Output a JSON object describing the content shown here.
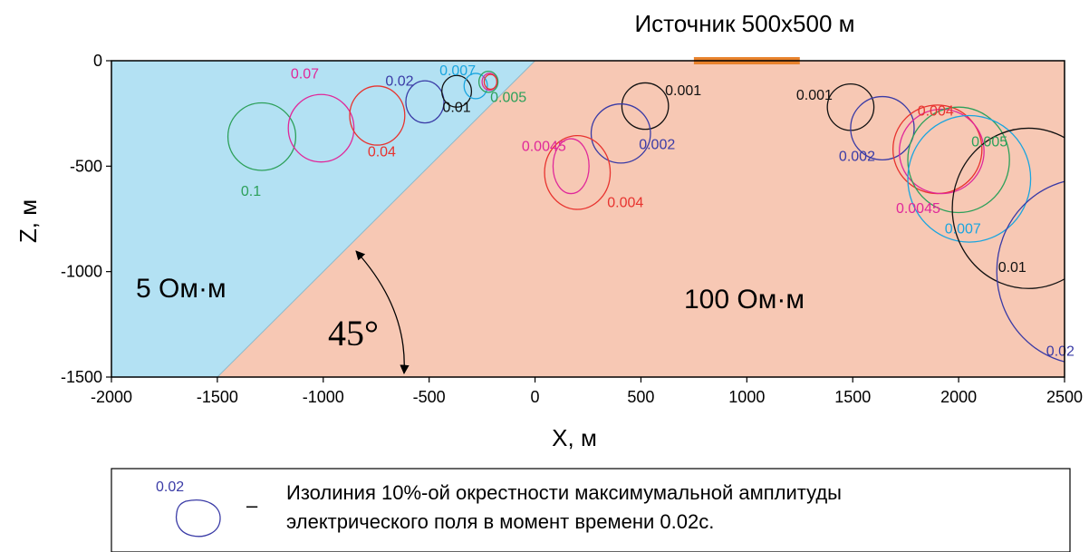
{
  "source": {
    "label": "Источник 500х500 м",
    "x_range": [
      750,
      1250
    ],
    "color": "#e8822c"
  },
  "axes": {
    "xlabel": "X, м",
    "ylabel": "Z, м",
    "xlim": [
      -2000,
      2500
    ],
    "zlim": [
      -1500,
      0
    ],
    "x_ticks": [
      {
        "v": -2000,
        "t": "-2000"
      },
      {
        "v": -1500,
        "t": "-1500"
      },
      {
        "v": -1000,
        "t": "-1000"
      },
      {
        "v": -500,
        "t": "-500"
      },
      {
        "v": 0,
        "t": "0"
      },
      {
        "v": 500,
        "t": "500"
      },
      {
        "v": 1000,
        "t": "1000"
      },
      {
        "v": 1500,
        "t": "1500"
      },
      {
        "v": 2000,
        "t": "2000"
      },
      {
        "v": 2500,
        "t": "2500"
      }
    ],
    "z_ticks": [
      {
        "v": 0,
        "t": "0"
      },
      {
        "v": -500,
        "t": "-500"
      },
      {
        "v": -1000,
        "t": "-1000"
      },
      {
        "v": -1500,
        "t": "-1500"
      }
    ]
  },
  "media": {
    "left": {
      "label": "5 Ом·м",
      "color": "#b3e1f3"
    },
    "right": {
      "label": "100 Ом·м",
      "color": "#f7c8b4"
    },
    "boundary": {
      "top_x": 0,
      "bottom_x": -1500
    },
    "angle_label": "45°"
  },
  "contours": [
    {
      "label": "0.1",
      "color": "#2da05a",
      "cx": -1290,
      "cz": -360,
      "rx": 160,
      "rz": 160
    },
    {
      "label": "0.07",
      "color": "#e0289a",
      "cx": -1010,
      "cz": -320,
      "rx": 155,
      "rz": 160
    },
    {
      "label": "0.04",
      "color": "#e8332f",
      "cx": -745,
      "cz": -260,
      "rx": 130,
      "rz": 140
    },
    {
      "label": "0.02",
      "color": "#3a3ba6",
      "cx": -520,
      "cz": -195,
      "rx": 90,
      "rz": 100
    },
    {
      "label": "0.01",
      "color": "#111111",
      "cx": -370,
      "cz": -145,
      "rx": 70,
      "rz": 75
    },
    {
      "label": "0.007",
      "color": "#1aa5df",
      "cx": -280,
      "cz": -120,
      "rx": 55,
      "rz": 60
    },
    {
      "label": "0.005",
      "color": "#2da05a",
      "cx": -220,
      "cz": -100,
      "rx": 45,
      "rz": 50
    },
    {
      "label": "",
      "color": "#e0289a",
      "cx": -215,
      "cz": -100,
      "rx": 35,
      "rz": 40
    },
    {
      "label": "",
      "color": "#e8332f",
      "cx": -210,
      "cz": -100,
      "rx": 30,
      "rz": 35
    },
    {
      "label": "0.001",
      "color": "#111111",
      "cx": 520,
      "cz": -215,
      "rx": 110,
      "rz": 110
    },
    {
      "label": "0.002",
      "color": "#3a3ba6",
      "cx": 405,
      "cz": -345,
      "rx": 140,
      "rz": 140
    },
    {
      "label": "0.0045",
      "color": "#e0289a",
      "cx": 170,
      "cz": -500,
      "rx": 85,
      "rz": 130
    },
    {
      "label": "0.004",
      "color": "#e8332f",
      "cx": 200,
      "cz": -530,
      "rx": 155,
      "rz": 175
    },
    {
      "label": "0.001",
      "color": "#111111",
      "cx": 1490,
      "cz": -220,
      "rx": 110,
      "rz": 110
    },
    {
      "label": "0.002",
      "color": "#3a3ba6",
      "cx": 1640,
      "cz": -320,
      "rx": 150,
      "rz": 150
    },
    {
      "label": "0.004",
      "color": "#e8332f",
      "cx": 1900,
      "cz": -420,
      "rx": 210,
      "rz": 210
    },
    {
      "label": "0.0045",
      "color": "#e0289a",
      "cx": 1920,
      "cz": -430,
      "rx": 200,
      "rz": 200
    },
    {
      "label": "0.005",
      "color": "#2da05a",
      "cx": 2000,
      "cz": -470,
      "rx": 240,
      "rz": 250
    },
    {
      "label": "0.007",
      "color": "#1aa5df",
      "cx": 2050,
      "cz": -560,
      "rx": 290,
      "rz": 300
    },
    {
      "label": "0.01",
      "color": "#111111",
      "cx": 2330,
      "cz": -700,
      "rx": 360,
      "rz": 380
    },
    {
      "label": "0.02",
      "color": "#3a3ba6",
      "cx": 2600,
      "cz": -1000,
      "rx": 420,
      "rz": 440
    }
  ],
  "legend": {
    "sample_label": "0.02",
    "sample_color": "#3a3ba6",
    "dash": "–",
    "line1": "Изолиния 10%-ой окрестности максимумальной амплитуды",
    "line2": "электрического поля в момент времени 0.02с."
  }
}
